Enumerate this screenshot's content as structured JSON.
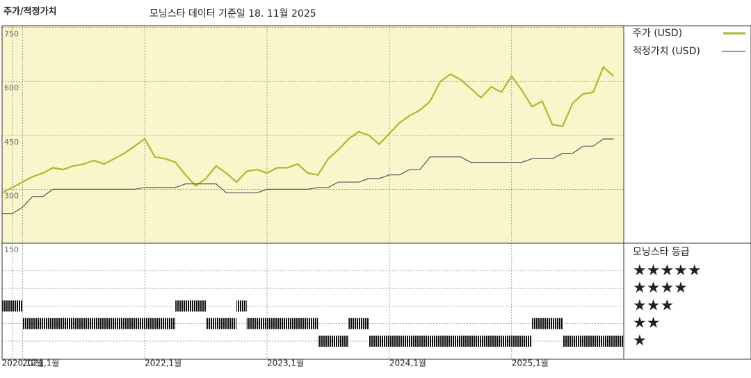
{
  "chart_data": {
    "type": "line",
    "title": "주가/적정가치",
    "subtitle": "모닝스타 데이터 기준일 18. 11월 2025",
    "x": [
      "2020-11",
      "2020-12",
      "2021-01",
      "2021-02",
      "2021-03",
      "2021-04",
      "2021-05",
      "2021-06",
      "2021-07",
      "2021-08",
      "2021-09",
      "2021-10",
      "2021-11",
      "2021-12",
      "2022-01",
      "2022-02",
      "2022-03",
      "2022-04",
      "2022-05",
      "2022-06",
      "2022-07",
      "2022-08",
      "2022-09",
      "2022-10",
      "2022-11",
      "2022-12",
      "2023-01",
      "2023-02",
      "2023-03",
      "2023-04",
      "2023-05",
      "2023-06",
      "2023-07",
      "2023-08",
      "2023-09",
      "2023-10",
      "2023-11",
      "2023-12",
      "2024-01",
      "2024-02",
      "2024-03",
      "2024-04",
      "2024-05",
      "2024-06",
      "2024-07",
      "2024-08",
      "2024-09",
      "2024-10",
      "2024-11",
      "2024-12",
      "2025-01",
      "2025-02",
      "2025-03",
      "2025-04",
      "2025-05",
      "2025-06",
      "2025-07",
      "2025-08",
      "2025-09",
      "2025-10",
      "2025-11"
    ],
    "series": [
      {
        "name": "주가 (USD)",
        "color": "#b2b52c",
        "values": [
          290,
          305,
          320,
          335,
          345,
          360,
          355,
          365,
          370,
          380,
          370,
          385,
          400,
          420,
          440,
          390,
          385,
          375,
          340,
          310,
          330,
          365,
          345,
          320,
          350,
          355,
          345,
          360,
          360,
          370,
          345,
          340,
          385,
          410,
          440,
          460,
          450,
          425,
          455,
          485,
          505,
          520,
          545,
          600,
          620,
          605,
          580,
          555,
          585,
          570,
          615,
          575,
          530,
          545,
          480,
          475,
          540,
          565,
          570,
          640,
          615
        ]
      },
      {
        "name": "적정가치 (USD)",
        "color": "#555555",
        "values": [
          232,
          232,
          250,
          280,
          280,
          300,
          300,
          300,
          300,
          300,
          300,
          300,
          300,
          300,
          305,
          305,
          305,
          305,
          315,
          315,
          315,
          315,
          290,
          290,
          290,
          290,
          300,
          300,
          300,
          300,
          300,
          305,
          305,
          320,
          320,
          320,
          330,
          330,
          340,
          340,
          355,
          355,
          390,
          390,
          390,
          390,
          375,
          375,
          375,
          375,
          375,
          375,
          385,
          385,
          385,
          400,
          400,
          420,
          420,
          440,
          440
        ]
      }
    ],
    "xlim": [
      "2020-11",
      "2025-12"
    ],
    "xticks": [
      {
        "value": "2020-12",
        "label": "2020,12월"
      },
      {
        "value": "2021-01",
        "label": "2021,1월"
      },
      {
        "value": "2022-01",
        "label": "2022,1월"
      },
      {
        "value": "2023-01",
        "label": "2023,1월"
      },
      {
        "value": "2024-01",
        "label": "2024,1월"
      },
      {
        "value": "2025-01",
        "label": "2025,1월"
      }
    ],
    "ylim": [
      150,
      755
    ],
    "yticks": [
      150,
      300,
      450,
      600,
      750
    ],
    "grid": true,
    "background": "#faf6cc",
    "rating_title": "모닝스타 등급",
    "rating_levels": [
      {
        "value": 5,
        "label": "★★★★★"
      },
      {
        "value": 4,
        "label": "★★★★"
      },
      {
        "value": 3,
        "label": "★★★"
      },
      {
        "value": 2,
        "label": "★★"
      },
      {
        "value": 1,
        "label": "★"
      }
    ],
    "ratings": [
      3,
      3,
      2,
      2,
      2,
      2,
      2,
      2,
      2,
      2,
      2,
      2,
      2,
      2,
      2,
      2,
      2,
      3,
      3,
      3,
      2,
      2,
      2,
      3,
      2,
      2,
      2,
      2,
      2,
      2,
      2,
      1,
      1,
      1,
      2,
      2,
      1,
      1,
      1,
      1,
      1,
      1,
      1,
      1,
      1,
      1,
      1,
      1,
      1,
      1,
      1,
      1,
      2,
      2,
      2,
      1,
      1,
      1,
      1,
      1,
      1
    ]
  }
}
